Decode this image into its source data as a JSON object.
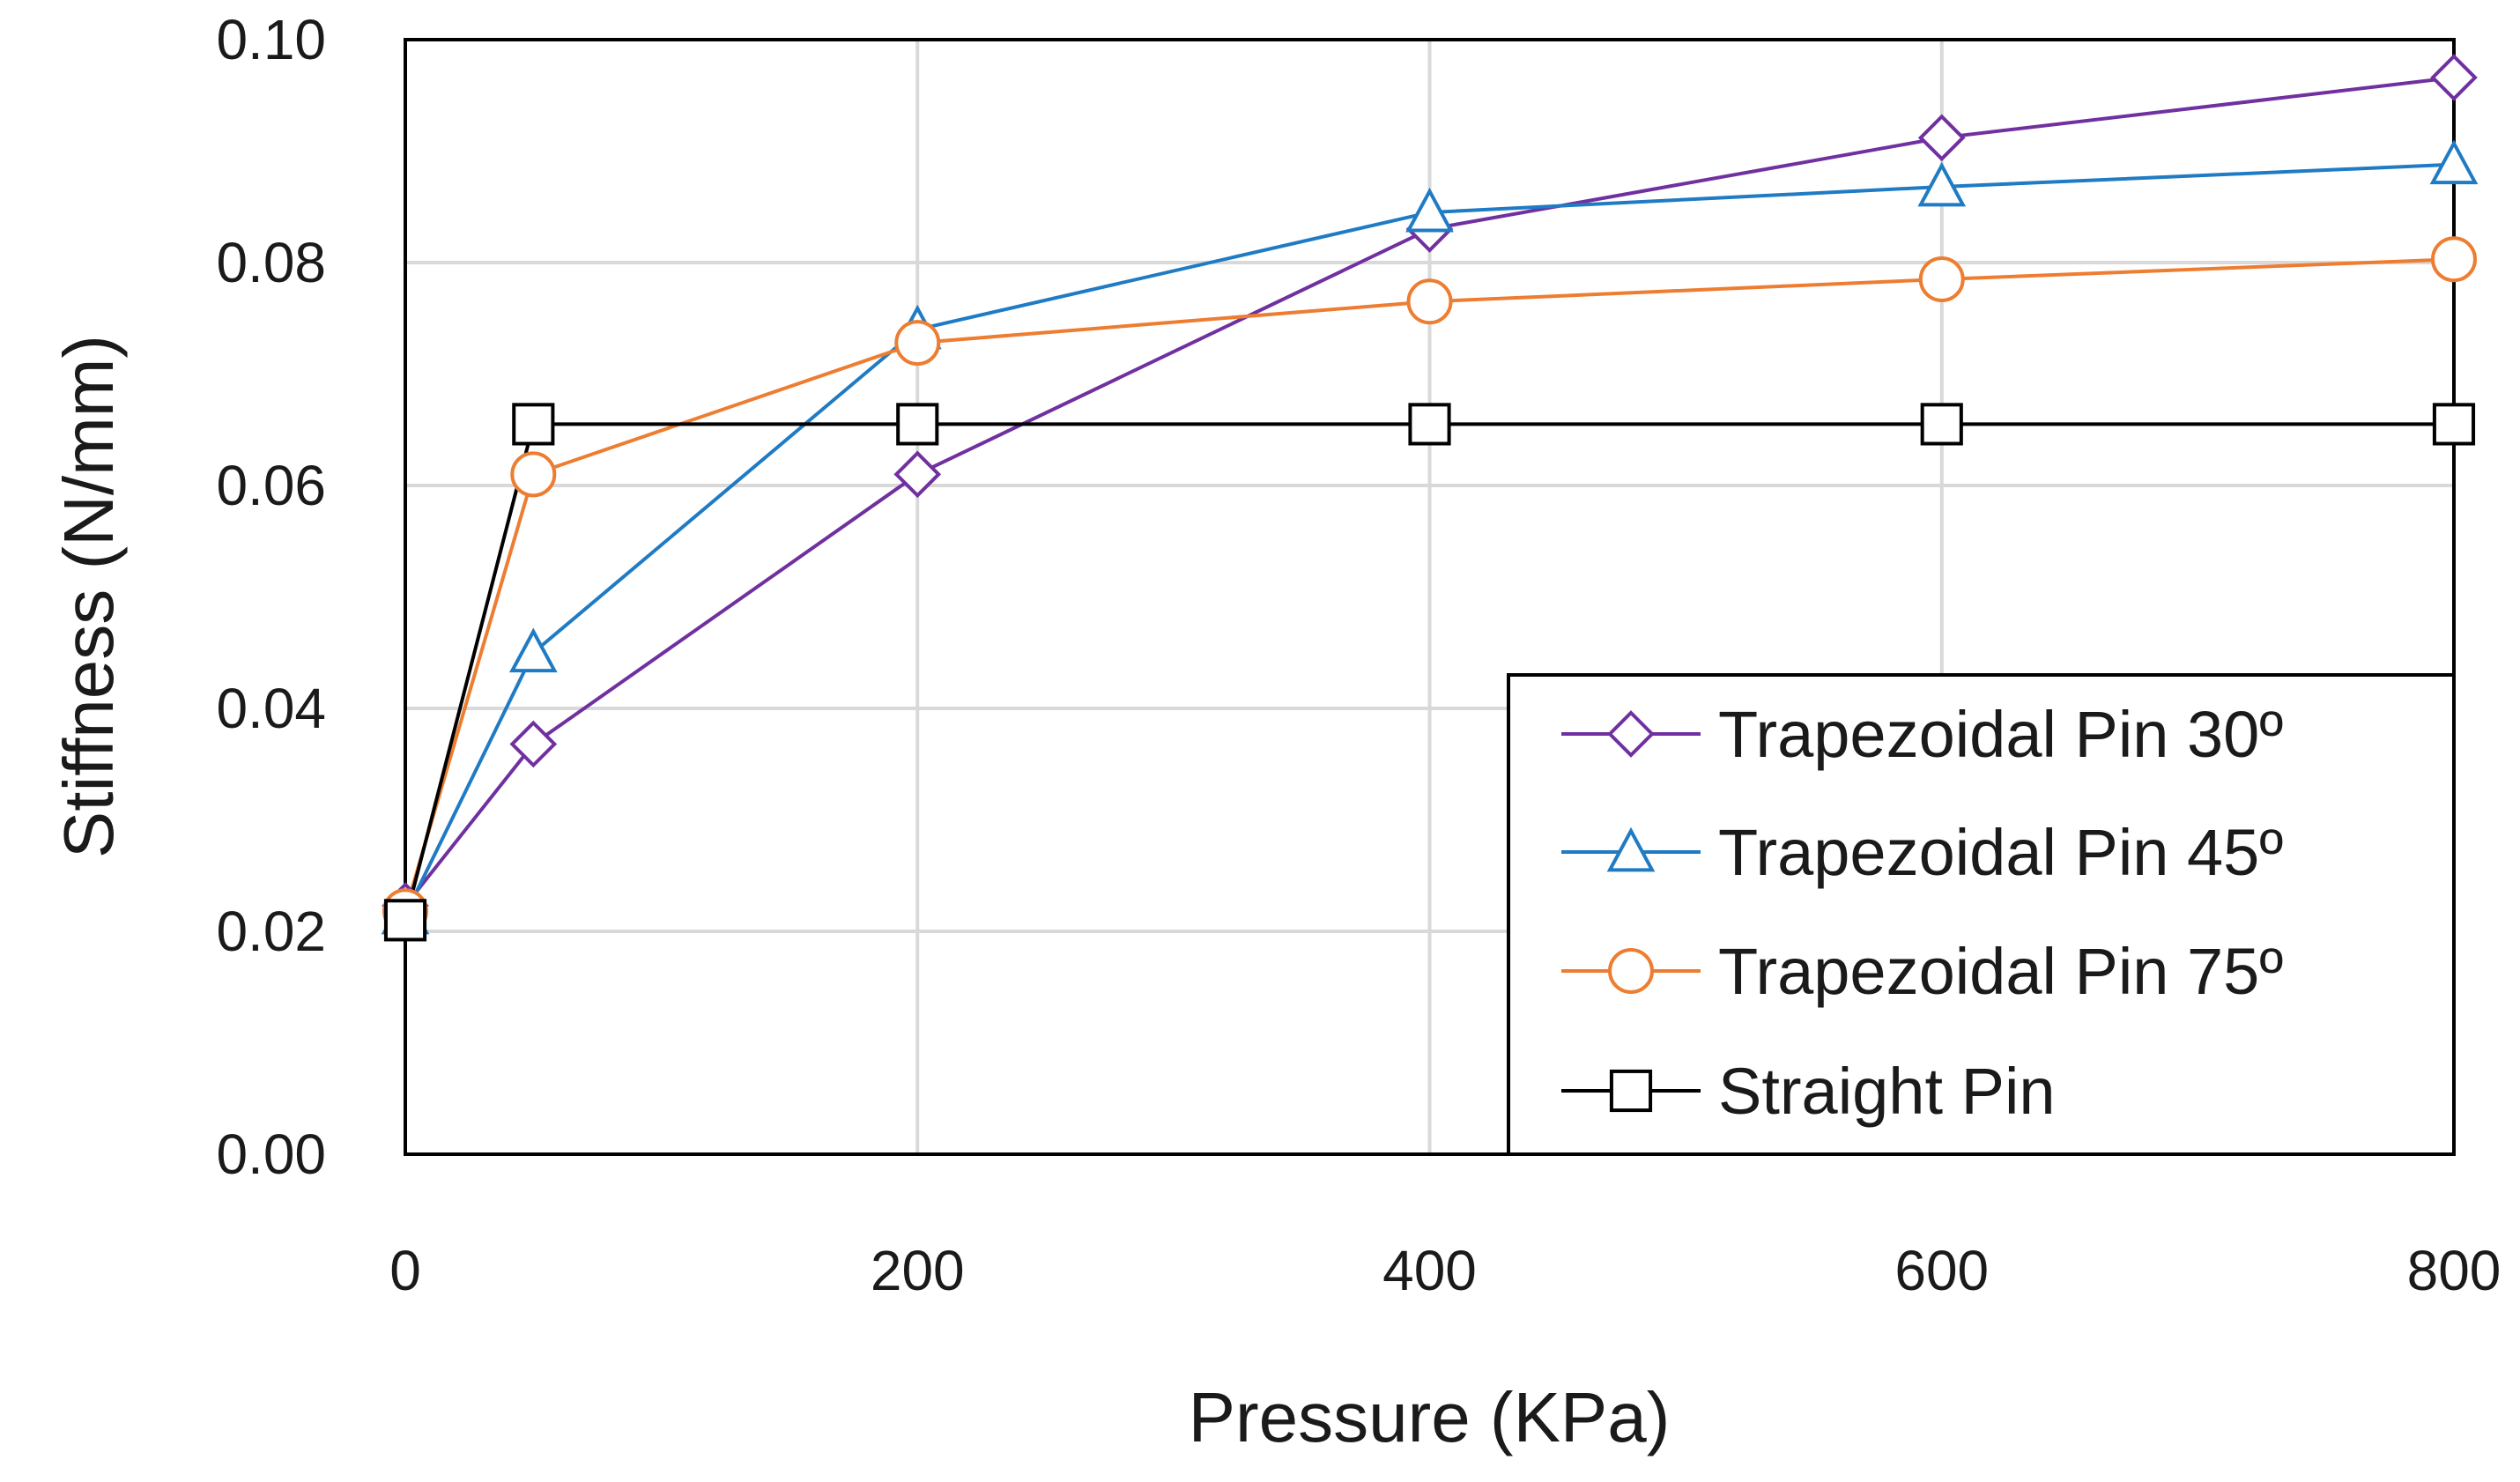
{
  "chart_data": {
    "type": "line",
    "title": "",
    "xlabel": "Pressure (KPa)",
    "ylabel": "Stiffness (N/mm)",
    "xlim": [
      0,
      800
    ],
    "ylim": [
      0,
      0.1
    ],
    "x_ticks": [
      "0",
      "200",
      "400",
      "600",
      "800"
    ],
    "y_ticks": [
      "0.00",
      "0.02",
      "0.04",
      "0.06",
      "0.08",
      "0.10"
    ],
    "grid": true,
    "legend_position": "bottom-right",
    "series": [
      {
        "name": "Trapezoidal Pin 30º",
        "marker": "diamond",
        "color": "#7030a0",
        "x": [
          0,
          50,
          200,
          400,
          600,
          800
        ],
        "y": [
          0.0223,
          0.0368,
          0.061,
          0.083,
          0.0912,
          0.0966
        ]
      },
      {
        "name": "Trapezoidal Pin 45º",
        "marker": "triangle",
        "color": "#1f7bc4",
        "x": [
          0,
          50,
          200,
          400,
          600,
          800
        ],
        "y": [
          0.0215,
          0.045,
          0.074,
          0.0845,
          0.0868,
          0.0888
        ]
      },
      {
        "name": "Trapezoidal Pin 75º",
        "marker": "circle",
        "color": "#ed7d31",
        "x": [
          0,
          50,
          200,
          400,
          600,
          800
        ],
        "y": [
          0.0218,
          0.061,
          0.0728,
          0.0765,
          0.0785,
          0.0803
        ]
      },
      {
        "name": "Straight Pin",
        "marker": "square",
        "color": "#000000",
        "x": [
          0,
          50,
          200,
          400,
          600,
          800
        ],
        "y": [
          0.021,
          0.0655,
          0.0655,
          0.0655,
          0.0655,
          0.0655
        ]
      }
    ]
  }
}
